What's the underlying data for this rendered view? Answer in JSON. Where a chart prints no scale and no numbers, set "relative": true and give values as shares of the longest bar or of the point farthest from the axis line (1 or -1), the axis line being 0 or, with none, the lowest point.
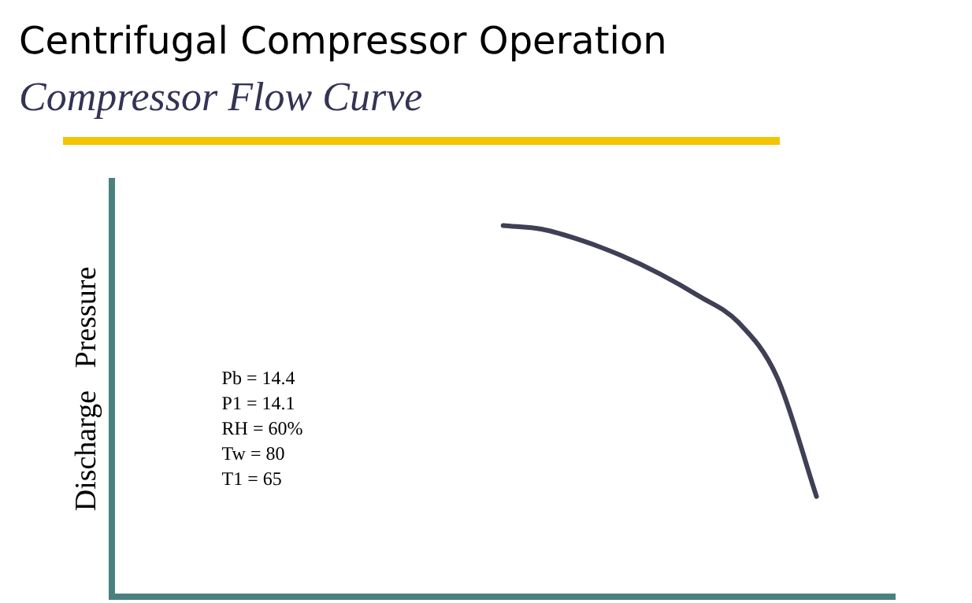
{
  "chart_data": {
    "type": "line",
    "title": "Centrifugal Compressor Operation",
    "subtitle": "Compressor Flow Curve",
    "ylabel": "Discharge   Pressure",
    "relative": true,
    "color": "#3f3f55",
    "marker": "none",
    "line_style": "solid",
    "grid": false,
    "legend": false,
    "categories": [
      null,
      null,
      null,
      null,
      null,
      null,
      null,
      null,
      null,
      null,
      null,
      null,
      null,
      null,
      null,
      null,
      null,
      null,
      null,
      null,
      null
    ],
    "values": [
      null,
      null,
      null,
      null,
      null,
      null,
      null,
      null,
      null,
      null,
      1,
      0.99,
      0.96,
      0.92,
      0.87,
      0.81,
      0.74,
      0.59,
      0.27,
      null,
      null
    ],
    "annotations": [
      "Pb = 14.4",
      "P1 = 14.1",
      "RH = 60%",
      "Tw = 80",
      "T1 = 65"
    ]
  }
}
